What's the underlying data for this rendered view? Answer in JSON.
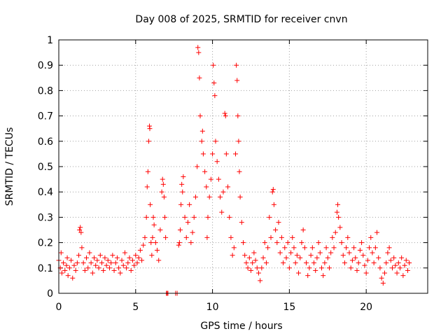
{
  "chart_data": {
    "type": "scatter",
    "title": "Day 008 of 2025, SRMTID for receiver cnvn",
    "xlabel": "GPS time / hours",
    "ylabel": "SRMTID / TECUs",
    "xlim": [
      0,
      24
    ],
    "ylim": [
      0,
      1
    ],
    "xticks": [
      0,
      5,
      10,
      15,
      20
    ],
    "yticks": [
      0,
      0.1,
      0.2,
      0.3,
      0.4,
      0.5,
      0.6,
      0.7,
      0.8,
      0.9,
      1
    ],
    "ytick_labels": [
      "0",
      "0.1",
      "0.2",
      "0.3",
      "0.4",
      "0.5",
      "0.6",
      "0.7",
      "0.8",
      "0.9",
      "1"
    ],
    "xtick_labels": [
      "0",
      "5",
      "10",
      "15",
      "20"
    ],
    "grid": true,
    "marker": "+",
    "marker_color": "#ff0000",
    "series": [
      {
        "name": "SRMTID",
        "points": [
          [
            0.0,
            0.13
          ],
          [
            0.1,
            0.1
          ],
          [
            0.15,
            0.16
          ],
          [
            0.2,
            0.08
          ],
          [
            0.3,
            0.12
          ],
          [
            0.4,
            0.09
          ],
          [
            0.5,
            0.11
          ],
          [
            0.55,
            0.14
          ],
          [
            0.6,
            0.07
          ],
          [
            0.7,
            0.1
          ],
          [
            0.8,
            0.13
          ],
          [
            0.9,
            0.06
          ],
          [
            1.0,
            0.11
          ],
          [
            1.1,
            0.09
          ],
          [
            1.2,
            0.12
          ],
          [
            1.3,
            0.15
          ],
          [
            1.35,
            0.25
          ],
          [
            1.4,
            0.26
          ],
          [
            1.45,
            0.24
          ],
          [
            1.5,
            0.18
          ],
          [
            1.6,
            0.12
          ],
          [
            1.7,
            0.09
          ],
          [
            1.8,
            0.14
          ],
          [
            1.9,
            0.1
          ],
          [
            2.0,
            0.16
          ],
          [
            2.1,
            0.12
          ],
          [
            2.2,
            0.08
          ],
          [
            2.3,
            0.14
          ],
          [
            2.4,
            0.11
          ],
          [
            2.5,
            0.13
          ],
          [
            2.6,
            0.1
          ],
          [
            2.7,
            0.15
          ],
          [
            2.8,
            0.12
          ],
          [
            2.9,
            0.09
          ],
          [
            3.0,
            0.14
          ],
          [
            3.1,
            0.11
          ],
          [
            3.2,
            0.13
          ],
          [
            3.3,
            0.1
          ],
          [
            3.4,
            0.12
          ],
          [
            3.5,
            0.15
          ],
          [
            3.6,
            0.09
          ],
          [
            3.7,
            0.12
          ],
          [
            3.8,
            0.14
          ],
          [
            3.9,
            0.1
          ],
          [
            4.0,
            0.08
          ],
          [
            4.1,
            0.13
          ],
          [
            4.2,
            0.11
          ],
          [
            4.3,
            0.16
          ],
          [
            4.4,
            0.1
          ],
          [
            4.5,
            0.12
          ],
          [
            4.6,
            0.14
          ],
          [
            4.7,
            0.09
          ],
          [
            4.8,
            0.13
          ],
          [
            4.9,
            0.11
          ],
          [
            5.0,
            0.15
          ],
          [
            5.1,
            0.12
          ],
          [
            5.2,
            0.14
          ],
          [
            5.3,
            0.17
          ],
          [
            5.4,
            0.13
          ],
          [
            5.5,
            0.19
          ],
          [
            5.6,
            0.22
          ],
          [
            5.7,
            0.3
          ],
          [
            5.75,
            0.42
          ],
          [
            5.8,
            0.48
          ],
          [
            5.85,
            0.6
          ],
          [
            5.9,
            0.66
          ],
          [
            5.92,
            0.65
          ],
          [
            5.95,
            0.35
          ],
          [
            6.0,
            0.2
          ],
          [
            6.05,
            0.15
          ],
          [
            6.1,
            0.22
          ],
          [
            6.15,
            0.3
          ],
          [
            6.2,
            0.27
          ],
          [
            6.3,
            0.2
          ],
          [
            6.4,
            0.17
          ],
          [
            6.5,
            0.13
          ],
          [
            6.6,
            0.25
          ],
          [
            6.7,
            0.4
          ],
          [
            6.75,
            0.45
          ],
          [
            6.8,
            0.43
          ],
          [
            6.85,
            0.38
          ],
          [
            6.9,
            0.3
          ],
          [
            6.95,
            0.22
          ],
          [
            7.0,
            0.0
          ],
          [
            7.05,
            0.0
          ],
          [
            7.1,
            0.0
          ],
          [
            7.6,
            0.0
          ],
          [
            7.7,
            0.0
          ],
          [
            7.8,
            0.19
          ],
          [
            7.85,
            0.2
          ],
          [
            7.9,
            0.25
          ],
          [
            7.95,
            0.35
          ],
          [
            8.0,
            0.43
          ],
          [
            8.05,
            0.4
          ],
          [
            8.1,
            0.46
          ],
          [
            8.2,
            0.3
          ],
          [
            8.3,
            0.22
          ],
          [
            8.4,
            0.28
          ],
          [
            8.5,
            0.35
          ],
          [
            8.6,
            0.2
          ],
          [
            8.7,
            0.24
          ],
          [
            8.8,
            0.3
          ],
          [
            8.9,
            0.38
          ],
          [
            9.0,
            0.5
          ],
          [
            9.05,
            0.97
          ],
          [
            9.1,
            0.95
          ],
          [
            9.15,
            0.85
          ],
          [
            9.2,
            0.7
          ],
          [
            9.3,
            0.6
          ],
          [
            9.35,
            0.64
          ],
          [
            9.4,
            0.55
          ],
          [
            9.5,
            0.48
          ],
          [
            9.6,
            0.42
          ],
          [
            9.65,
            0.22
          ],
          [
            9.7,
            0.3
          ],
          [
            9.8,
            0.38
          ],
          [
            9.9,
            0.45
          ],
          [
            10.0,
            0.55
          ],
          [
            10.05,
            0.9
          ],
          [
            10.1,
            0.83
          ],
          [
            10.15,
            0.78
          ],
          [
            10.2,
            0.6
          ],
          [
            10.3,
            0.52
          ],
          [
            10.4,
            0.45
          ],
          [
            10.5,
            0.38
          ],
          [
            10.6,
            0.32
          ],
          [
            10.7,
            0.4
          ],
          [
            10.8,
            0.71
          ],
          [
            10.85,
            0.7
          ],
          [
            10.9,
            0.55
          ],
          [
            11.0,
            0.42
          ],
          [
            11.1,
            0.3
          ],
          [
            11.2,
            0.22
          ],
          [
            11.3,
            0.15
          ],
          [
            11.4,
            0.18
          ],
          [
            11.5,
            0.55
          ],
          [
            11.55,
            0.9
          ],
          [
            11.6,
            0.84
          ],
          [
            11.65,
            0.7
          ],
          [
            11.7,
            0.6
          ],
          [
            11.75,
            0.48
          ],
          [
            11.8,
            0.38
          ],
          [
            11.9,
            0.28
          ],
          [
            12.0,
            0.2
          ],
          [
            12.1,
            0.15
          ],
          [
            12.2,
            0.12
          ],
          [
            12.3,
            0.1
          ],
          [
            12.4,
            0.14
          ],
          [
            12.5,
            0.09
          ],
          [
            12.6,
            0.12
          ],
          [
            12.7,
            0.16
          ],
          [
            12.8,
            0.13
          ],
          [
            12.9,
            0.1
          ],
          [
            13.0,
            0.08
          ],
          [
            13.1,
            0.05
          ],
          [
            13.2,
            0.1
          ],
          [
            13.3,
            0.14
          ],
          [
            13.4,
            0.2
          ],
          [
            13.5,
            0.12
          ],
          [
            13.6,
            0.18
          ],
          [
            13.7,
            0.3
          ],
          [
            13.8,
            0.22
          ],
          [
            13.9,
            0.4
          ],
          [
            13.95,
            0.41
          ],
          [
            14.0,
            0.35
          ],
          [
            14.1,
            0.25
          ],
          [
            14.2,
            0.2
          ],
          [
            14.3,
            0.28
          ],
          [
            14.4,
            0.16
          ],
          [
            14.5,
            0.22
          ],
          [
            14.6,
            0.12
          ],
          [
            14.7,
            0.18
          ],
          [
            14.8,
            0.14
          ],
          [
            14.9,
            0.2
          ],
          [
            15.0,
            0.1
          ],
          [
            15.1,
            0.16
          ],
          [
            15.2,
            0.22
          ],
          [
            15.3,
            0.18
          ],
          [
            15.4,
            0.12
          ],
          [
            15.5,
            0.15
          ],
          [
            15.6,
            0.08
          ],
          [
            15.7,
            0.14
          ],
          [
            15.8,
            0.2
          ],
          [
            15.9,
            0.25
          ],
          [
            16.0,
            0.18
          ],
          [
            16.1,
            0.12
          ],
          [
            16.2,
            0.07
          ],
          [
            16.3,
            0.1
          ],
          [
            16.4,
            0.15
          ],
          [
            16.5,
            0.18
          ],
          [
            16.6,
            0.12
          ],
          [
            16.7,
            0.09
          ],
          [
            16.8,
            0.14
          ],
          [
            16.9,
            0.2
          ],
          [
            17.0,
            0.16
          ],
          [
            17.1,
            0.1
          ],
          [
            17.2,
            0.07
          ],
          [
            17.3,
            0.12
          ],
          [
            17.4,
            0.18
          ],
          [
            17.5,
            0.14
          ],
          [
            17.6,
            0.1
          ],
          [
            17.7,
            0.16
          ],
          [
            17.8,
            0.22
          ],
          [
            17.9,
            0.18
          ],
          [
            18.0,
            0.24
          ],
          [
            18.1,
            0.32
          ],
          [
            18.15,
            0.35
          ],
          [
            18.2,
            0.3
          ],
          [
            18.3,
            0.26
          ],
          [
            18.4,
            0.2
          ],
          [
            18.5,
            0.15
          ],
          [
            18.6,
            0.12
          ],
          [
            18.7,
            0.18
          ],
          [
            18.8,
            0.22
          ],
          [
            18.9,
            0.16
          ],
          [
            19.0,
            0.1
          ],
          [
            19.1,
            0.13
          ],
          [
            19.2,
            0.18
          ],
          [
            19.3,
            0.14
          ],
          [
            19.4,
            0.09
          ],
          [
            19.5,
            0.12
          ],
          [
            19.6,
            0.17
          ],
          [
            19.7,
            0.2
          ],
          [
            19.8,
            0.15
          ],
          [
            19.9,
            0.11
          ],
          [
            20.0,
            0.08
          ],
          [
            20.1,
            0.13
          ],
          [
            20.2,
            0.18
          ],
          [
            20.3,
            0.22
          ],
          [
            20.4,
            0.16
          ],
          [
            20.5,
            0.12
          ],
          [
            20.6,
            0.18
          ],
          [
            20.7,
            0.24
          ],
          [
            20.8,
            0.14
          ],
          [
            20.9,
            0.1
          ],
          [
            21.0,
            0.06
          ],
          [
            21.1,
            0.04
          ],
          [
            21.2,
            0.08
          ],
          [
            21.3,
            0.12
          ],
          [
            21.4,
            0.16
          ],
          [
            21.5,
            0.18
          ],
          [
            21.6,
            0.13
          ],
          [
            21.7,
            0.1
          ],
          [
            21.8,
            0.14
          ],
          [
            21.9,
            0.11
          ],
          [
            22.0,
            0.08
          ],
          [
            22.1,
            0.12
          ],
          [
            22.2,
            0.1
          ],
          [
            22.3,
            0.14
          ],
          [
            22.4,
            0.07
          ],
          [
            22.5,
            0.11
          ],
          [
            22.6,
            0.13
          ],
          [
            22.7,
            0.09
          ],
          [
            22.8,
            0.12
          ]
        ]
      }
    ]
  }
}
